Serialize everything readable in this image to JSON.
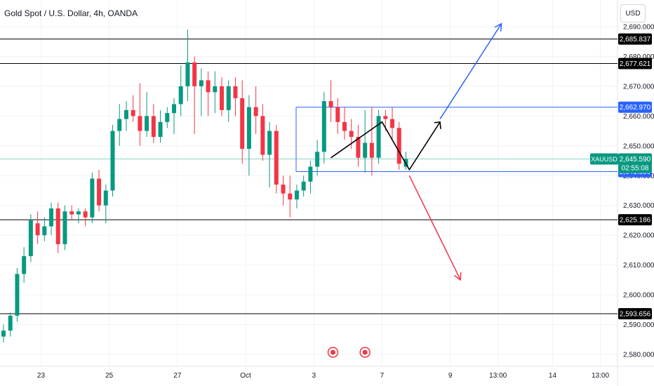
{
  "header": {
    "title": "Gold Spot / U.S. Dollar, 4h, OANDA",
    "currency_button": "USD"
  },
  "chart_data": {
    "type": "candlestick",
    "symbol": "XAUUSD",
    "title": "Gold Spot / U.S. Dollar, 4h, OANDA",
    "ylim": [
      2576,
      2698
    ],
    "y_ticks": [
      "2,580.000",
      "2,590.000",
      "2,600.000",
      "2,610.000",
      "2,620.000",
      "2,630.000",
      "2,640.000",
      "2,650.000",
      "2,660.000",
      "2,670.000",
      "2,680.000",
      "2,690.000"
    ],
    "y_tick_values": [
      2580,
      2590,
      2600,
      2610,
      2620,
      2630,
      2640,
      2650,
      2660,
      2670,
      2680,
      2690
    ],
    "x_ticks": [
      {
        "label": "23",
        "bar": 5.5
      },
      {
        "label": "25",
        "bar": 15.5
      },
      {
        "label": "27",
        "bar": 25.5
      },
      {
        "label": "Oct",
        "bar": 35.5
      },
      {
        "label": "3",
        "bar": 45.5
      },
      {
        "label": "7",
        "bar": 55.5
      },
      {
        "label": "9",
        "bar": 65.5
      },
      {
        "label": "13:00",
        "bar": 72.5
      },
      {
        "label": "14",
        "bar": 80.5
      },
      {
        "label": "13:00",
        "bar": 87.5
      }
    ],
    "colors": {
      "up": "#089981",
      "down": "#f23645",
      "blue": "#2962ff",
      "black": "#000000",
      "accent": "#131722"
    },
    "candles": [
      [
        2586,
        2590,
        2584,
        2588
      ],
      [
        2588,
        2594,
        2586,
        2593
      ],
      [
        2593,
        2609,
        2591,
        2607
      ],
      [
        2607,
        2616,
        2604,
        2613
      ],
      [
        2613,
        2627,
        2611,
        2625
      ],
      [
        2624,
        2628,
        2617,
        2620
      ],
      [
        2620,
        2626,
        2618,
        2623
      ],
      [
        2623,
        2631,
        2620,
        2629
      ],
      [
        2629,
        2631,
        2614,
        2617
      ],
      [
        2617,
        2630,
        2615,
        2628
      ],
      [
        2628,
        2630,
        2625,
        2627
      ],
      [
        2627,
        2629,
        2624,
        2628
      ],
      [
        2628,
        2629,
        2623,
        2626
      ],
      [
        2626,
        2641,
        2624,
        2639
      ],
      [
        2639,
        2642,
        2628,
        2630
      ],
      [
        2630,
        2637,
        2624,
        2635
      ],
      [
        2635,
        2657,
        2633,
        2655
      ],
      [
        2655,
        2664,
        2650,
        2659
      ],
      [
        2659,
        2665,
        2655,
        2662
      ],
      [
        2662,
        2667,
        2658,
        2660
      ],
      [
        2660,
        2671,
        2650,
        2655
      ],
      [
        2655,
        2668,
        2653,
        2660
      ],
      [
        2660,
        2664,
        2651,
        2653
      ],
      [
        2653,
        2662,
        2651,
        2658
      ],
      [
        2658,
        2663,
        2656,
        2661
      ],
      [
        2661,
        2666,
        2654,
        2664
      ],
      [
        2664,
        2677,
        2660,
        2670
      ],
      [
        2670,
        2689,
        2665,
        2678
      ],
      [
        2678,
        2680,
        2654,
        2670
      ],
      [
        2670,
        2676,
        2660,
        2672
      ],
      [
        2672,
        2675,
        2660,
        2668
      ],
      [
        2668,
        2675,
        2661,
        2670
      ],
      [
        2670,
        2673,
        2660,
        2662
      ],
      [
        2662,
        2672,
        2658,
        2670
      ],
      [
        2670,
        2673,
        2660,
        2666
      ],
      [
        2666,
        2672,
        2644,
        2649
      ],
      [
        2649,
        2667,
        2640,
        2663
      ],
      [
        2663,
        2670,
        2654,
        2660
      ],
      [
        2660,
        2664,
        2645,
        2647
      ],
      [
        2647,
        2658,
        2636,
        2655
      ],
      [
        2655,
        2657,
        2634,
        2637
      ],
      [
        2637,
        2640,
        2630,
        2634
      ],
      [
        2634,
        2640,
        2626,
        2632
      ],
      [
        2632,
        2637,
        2629,
        2635
      ],
      [
        2635,
        2640,
        2633,
        2638
      ],
      [
        2638,
        2645,
        2634,
        2643
      ],
      [
        2643,
        2652,
        2640,
        2648
      ],
      [
        2648,
        2668,
        2644,
        2665
      ],
      [
        2665,
        2672,
        2658,
        2663
      ],
      [
        2663,
        2666,
        2654,
        2658
      ],
      [
        2658,
        2663,
        2652,
        2655
      ],
      [
        2655,
        2659,
        2649,
        2653
      ],
      [
        2653,
        2657,
        2643,
        2646
      ],
      [
        2646,
        2662,
        2641,
        2651
      ],
      [
        2651,
        2663,
        2640,
        2646
      ],
      [
        2646,
        2662,
        2644,
        2660
      ],
      [
        2660,
        2662,
        2655,
        2659
      ],
      [
        2659,
        2663,
        2652,
        2656
      ],
      [
        2656,
        2658,
        2642,
        2644
      ],
      [
        2643,
        2648,
        2642,
        2645.59
      ]
    ],
    "horizontal_levels": [
      {
        "value": 2685.837,
        "label": "2,685.837",
        "color": "#000000"
      },
      {
        "value": 2677.621,
        "label": "2,677.621",
        "color": "#000000"
      },
      {
        "value": 2662.97,
        "label": "2,662.970",
        "color": "#2962ff"
      },
      {
        "value": 2641.35,
        "label": "2,641.350",
        "color": "#2962ff"
      },
      {
        "value": 2625.186,
        "label": "2,625.186",
        "color": "#000000"
      },
      {
        "value": 2593.656,
        "label": "2,593.656",
        "color": "#000000"
      }
    ],
    "last_price": {
      "symbol": "XAUUSD",
      "value": "2,645.590",
      "countdown": "02:55:08",
      "color": "#089981"
    },
    "drawings": {
      "zigzag": [
        [
          48,
          2646
        ],
        [
          55.5,
          2658
        ],
        [
          59.5,
          2642
        ],
        [
          64,
          2658
        ]
      ],
      "up_arrow": {
        "from": [
          64,
          2659
        ],
        "to": [
          73,
          2691
        ]
      },
      "down_arrow": {
        "from": [
          59.5,
          2640
        ],
        "to": [
          67,
          2605
        ]
      }
    },
    "event_markers": [
      {
        "bar": 48.3
      },
      {
        "bar": 53
      }
    ],
    "grid": true,
    "legend": "none"
  }
}
